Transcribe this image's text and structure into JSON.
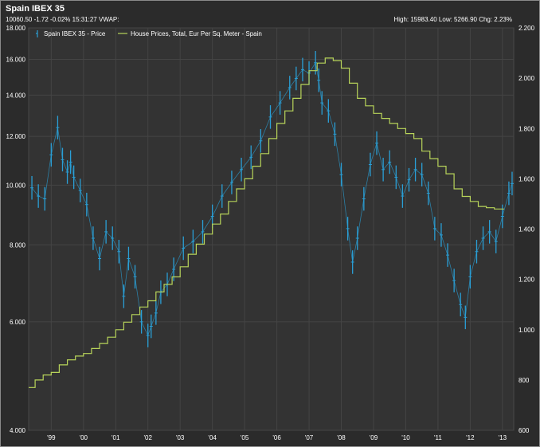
{
  "header": {
    "title": "Spain IBEX 35",
    "quote": "10060.50 -1.72 -0.02% 15:31:27 VWAP:",
    "stats": "High: 15983.40 Low: 5266.90 Chg: 2.23%"
  },
  "chart_data": {
    "type": "line",
    "title": "Spain IBEX 35",
    "legend_position": "top-left",
    "grid": true,
    "x_labels": [
      "'99",
      "'00",
      "'01",
      "'02",
      "'03",
      "'04",
      "'05",
      "'06",
      "'07",
      "'08",
      "'09",
      "'10",
      "'11",
      "'12",
      "'13"
    ],
    "x_range": [
      1998.8,
      2013.85
    ],
    "y_left": {
      "scale": "log",
      "range": [
        4000,
        18000
      ],
      "ticks": [
        4000,
        6000,
        8000,
        10000,
        12000,
        14000,
        16000,
        18000
      ],
      "tick_labels": [
        "4.000",
        "6.000",
        "8.000",
        "10.000",
        "12.000",
        "14.000",
        "16.000",
        "18.000"
      ]
    },
    "y_right": {
      "scale": "linear",
      "range": [
        600,
        2200
      ],
      "ticks": [
        600,
        800,
        1000,
        1200,
        1400,
        1600,
        1800,
        2000,
        2200
      ],
      "tick_labels": [
        "600",
        "800",
        "1.000",
        "1.200",
        "1.400",
        "1.600",
        "1.800",
        "2.000",
        "2.200"
      ]
    },
    "series": [
      {
        "name": "Spain IBEX 35 - Price",
        "axis": "left",
        "color": "#2a9fd6",
        "style": "ohlc-bars",
        "x": [
          1998.9,
          1999.1,
          1999.3,
          1999.5,
          1999.7,
          1999.85,
          2000.0,
          2000.1,
          2000.2,
          2000.4,
          2000.6,
          2000.8,
          2001.0,
          2001.2,
          2001.4,
          2001.6,
          2001.75,
          2001.9,
          2002.1,
          2002.3,
          2002.5,
          2002.6,
          2002.75,
          2002.9,
          2003.1,
          2003.3,
          2003.6,
          2003.9,
          2004.2,
          2004.5,
          2004.8,
          2005.1,
          2005.4,
          2005.7,
          2006.0,
          2006.3,
          2006.6,
          2006.9,
          2007.1,
          2007.3,
          2007.5,
          2007.7,
          2007.8,
          2007.9,
          2008.1,
          2008.3,
          2008.5,
          2008.7,
          2008.85,
          2009.0,
          2009.2,
          2009.4,
          2009.6,
          2009.8,
          2010.0,
          2010.2,
          2010.4,
          2010.6,
          2010.8,
          2011.0,
          2011.2,
          2011.4,
          2011.6,
          2011.8,
          2012.0,
          2012.2,
          2012.35,
          2012.5,
          2012.7,
          2012.9,
          2013.1,
          2013.3,
          2013.5,
          2013.7,
          2013.8
        ],
        "values": [
          9900,
          9600,
          9500,
          11200,
          12400,
          11000,
          10500,
          10900,
          10300,
          9800,
          9300,
          8200,
          7600,
          8400,
          8200,
          7800,
          6600,
          7600,
          7100,
          6000,
          5700,
          5900,
          6200,
          6700,
          6900,
          7300,
          7900,
          8100,
          8400,
          8900,
          9600,
          10100,
          10600,
          11100,
          11800,
          12900,
          13600,
          14400,
          14900,
          15400,
          15200,
          15800,
          14800,
          13600,
          13200,
          12100,
          10400,
          8500,
          7500,
          8200,
          9500,
          10800,
          11700,
          10600,
          10900,
          10300,
          9600,
          10200,
          10600,
          10400,
          9700,
          8500,
          8300,
          7700,
          7000,
          6400,
          6100,
          7100,
          7800,
          8200,
          8400,
          8100,
          8900,
          9700,
          10060
        ]
      },
      {
        "name": "House Prices, Total, Eur Per Sq. Meter - Spain",
        "axis": "right",
        "color": "#b8d45a",
        "style": "step-line",
        "x": [
          1998.8,
          1999.0,
          1999.25,
          1999.5,
          1999.75,
          2000.0,
          2000.25,
          2000.5,
          2000.75,
          2001.0,
          2001.25,
          2001.5,
          2001.75,
          2002.0,
          2002.25,
          2002.5,
          2002.75,
          2003.0,
          2003.25,
          2003.5,
          2003.75,
          2004.0,
          2004.25,
          2004.5,
          2004.75,
          2005.0,
          2005.25,
          2005.5,
          2005.75,
          2006.0,
          2006.25,
          2006.5,
          2006.75,
          2007.0,
          2007.25,
          2007.5,
          2007.75,
          2008.0,
          2008.25,
          2008.5,
          2008.75,
          2009.0,
          2009.25,
          2009.5,
          2009.75,
          2010.0,
          2010.25,
          2010.5,
          2010.75,
          2011.0,
          2011.25,
          2011.5,
          2011.75,
          2012.0,
          2012.25,
          2012.5,
          2012.75,
          2013.0,
          2013.25
        ],
        "values": [
          770,
          800,
          820,
          830,
          860,
          880,
          895,
          905,
          925,
          945,
          970,
          1000,
          1030,
          1060,
          1090,
          1115,
          1150,
          1180,
          1210,
          1250,
          1300,
          1340,
          1380,
          1420,
          1460,
          1510,
          1560,
          1600,
          1650,
          1700,
          1760,
          1820,
          1870,
          1920,
          1975,
          2030,
          2060,
          2080,
          2070,
          2040,
          1980,
          1920,
          1890,
          1860,
          1840,
          1820,
          1800,
          1780,
          1760,
          1710,
          1680,
          1650,
          1620,
          1560,
          1530,
          1510,
          1490,
          1485,
          1480
        ]
      }
    ]
  }
}
